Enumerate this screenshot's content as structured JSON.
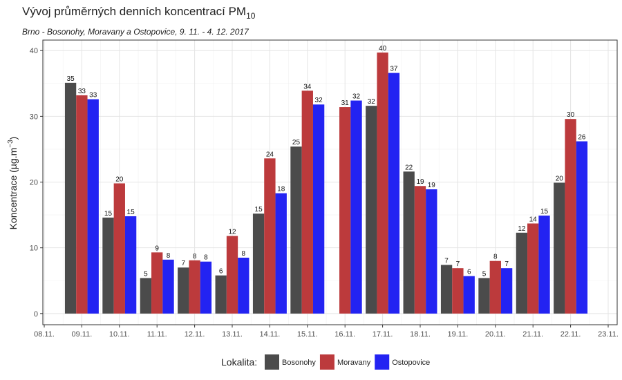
{
  "chart_data": {
    "type": "bar",
    "title": "Vývoj průměrných denních koncentrací PM",
    "title_subscript": "10",
    "subtitle": "Brno - Bosonohy, Moravany a Ostopovice, 9. 11. - 4. 12. 2017",
    "y_label": "Koncentrace  (µg.m",
    "y_label_superscript": "−3",
    "y_label_end": ")",
    "categories": [
      "08.11.",
      "09.11.",
      "10.11.",
      "11.11.",
      "12.11.",
      "13.11.",
      "14.11.",
      "15.11.",
      "16.11.",
      "17.11.",
      "18.11.",
      "19.11.",
      "20.11.",
      "21.11.",
      "22.11.",
      "23.11."
    ],
    "series": [
      {
        "name": "Bosonohy",
        "color": "#4b4b4b",
        "values": [
          null,
          35.1,
          14.6,
          5.4,
          7.0,
          5.8,
          15.2,
          25.4,
          null,
          31.6,
          21.6,
          7.4,
          5.4,
          12.3,
          19.9,
          null
        ],
        "value_labels": [
          null,
          "35",
          "15",
          "5",
          "7",
          "6",
          "15",
          "25",
          null,
          "32",
          "22",
          "7",
          "5",
          "12",
          "20",
          null
        ]
      },
      {
        "name": "Moravany",
        "color": "#bc3a3c",
        "values": [
          null,
          33.2,
          19.8,
          9.3,
          8.1,
          11.8,
          23.6,
          33.9,
          31.4,
          39.7,
          19.4,
          6.9,
          8.0,
          13.7,
          29.6,
          null
        ],
        "value_labels": [
          null,
          "33",
          "20",
          "9",
          "8",
          "12",
          "24",
          "34",
          "31",
          "40",
          "19",
          "7",
          "8",
          "14",
          "30",
          null
        ]
      },
      {
        "name": "Ostopovice",
        "color": "#2323f2",
        "values": [
          null,
          32.6,
          14.8,
          8.2,
          7.9,
          8.5,
          18.3,
          31.8,
          32.4,
          36.6,
          18.9,
          5.7,
          6.9,
          14.9,
          26.2,
          null
        ],
        "value_labels": [
          null,
          "33",
          "15",
          "8",
          "8",
          "8",
          "18",
          "32",
          "32",
          "37",
          "19",
          "6",
          "7",
          "15",
          "26",
          null
        ]
      }
    ],
    "ylim": [
      -1.7,
      41.6
    ],
    "yticks": [
      0,
      10,
      20,
      30,
      40
    ],
    "grid": true,
    "legend_title": "Lokalita:",
    "legend_position": "bottom"
  }
}
